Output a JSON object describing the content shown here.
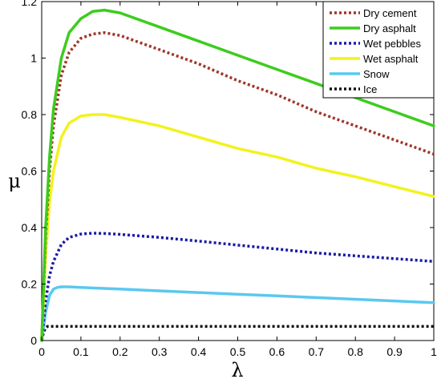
{
  "chart_data": {
    "type": "line",
    "title": "",
    "xlabel": "λ",
    "ylabel": "μ",
    "xlim": [
      0,
      1
    ],
    "ylim": [
      0,
      1.2
    ],
    "xticks": [
      "0",
      "0.1",
      "0.2",
      "0.3",
      "0.4",
      "0.5",
      "0.6",
      "0.7",
      "0.8",
      "0.9",
      "1"
    ],
    "yticks": [
      "0",
      "0.2",
      "0.4",
      "0.6",
      "0.8",
      "1",
      "1.2"
    ],
    "grid": false,
    "legend_position": "top-right",
    "series": [
      {
        "name": "Dry cement",
        "color": "#a0362a",
        "dash": "dotted",
        "x": [
          0,
          0.01,
          0.02,
          0.03,
          0.05,
          0.07,
          0.1,
          0.13,
          0.16,
          0.2,
          0.3,
          0.4,
          0.5,
          0.6,
          0.7,
          0.8,
          0.9,
          1.0
        ],
        "y": [
          0,
          0.37,
          0.6,
          0.76,
          0.94,
          1.02,
          1.07,
          1.085,
          1.09,
          1.08,
          1.03,
          0.98,
          0.92,
          0.87,
          0.81,
          0.76,
          0.71,
          0.66
        ]
      },
      {
        "name": "Dry asphalt",
        "color": "#3dcc1e",
        "dash": "solid",
        "x": [
          0,
          0.01,
          0.02,
          0.03,
          0.05,
          0.07,
          0.1,
          0.13,
          0.16,
          0.2,
          0.3,
          0.4,
          0.5,
          0.6,
          0.7,
          0.8,
          0.9,
          1.0
        ],
        "y": [
          0,
          0.4,
          0.65,
          0.82,
          1.0,
          1.09,
          1.14,
          1.165,
          1.17,
          1.16,
          1.11,
          1.06,
          1.01,
          0.96,
          0.91,
          0.86,
          0.81,
          0.76
        ]
      },
      {
        "name": "Wet pebbles",
        "color": "#1a1aa8",
        "dash": "dotted",
        "x": [
          0,
          0.01,
          0.02,
          0.03,
          0.05,
          0.07,
          0.1,
          0.13,
          0.16,
          0.2,
          0.3,
          0.4,
          0.5,
          0.6,
          0.7,
          0.8,
          0.9,
          1.0
        ],
        "y": [
          0,
          0.14,
          0.23,
          0.28,
          0.34,
          0.365,
          0.377,
          0.38,
          0.379,
          0.376,
          0.365,
          0.352,
          0.338,
          0.324,
          0.31,
          0.3,
          0.29,
          0.28
        ]
      },
      {
        "name": "Wet asphalt",
        "color": "#f2f21e",
        "dash": "solid",
        "x": [
          0,
          0.01,
          0.02,
          0.03,
          0.05,
          0.07,
          0.1,
          0.13,
          0.16,
          0.2,
          0.3,
          0.4,
          0.5,
          0.6,
          0.7,
          0.8,
          0.9,
          1.0
        ],
        "y": [
          0,
          0.3,
          0.49,
          0.6,
          0.72,
          0.77,
          0.795,
          0.8,
          0.8,
          0.79,
          0.76,
          0.72,
          0.68,
          0.65,
          0.61,
          0.58,
          0.545,
          0.51
        ]
      },
      {
        "name": "Snow",
        "color": "#5ac8f0",
        "dash": "solid",
        "x": [
          0,
          0.01,
          0.02,
          0.03,
          0.04,
          0.05,
          0.07,
          0.1,
          0.2,
          0.3,
          0.4,
          0.5,
          0.6,
          0.7,
          0.8,
          0.9,
          1.0
        ],
        "y": [
          0,
          0.1,
          0.16,
          0.182,
          0.188,
          0.19,
          0.19,
          0.188,
          0.182,
          0.176,
          0.17,
          0.164,
          0.158,
          0.152,
          0.146,
          0.14,
          0.134
        ]
      },
      {
        "name": "Ice",
        "color": "#111111",
        "dash": "dotted",
        "x": [
          0,
          0.005,
          0.01,
          0.015,
          0.02,
          0.03,
          0.1,
          0.5,
          1.0
        ],
        "y": [
          0,
          0.03,
          0.045,
          0.05,
          0.05,
          0.05,
          0.05,
          0.05,
          0.05
        ]
      }
    ]
  }
}
